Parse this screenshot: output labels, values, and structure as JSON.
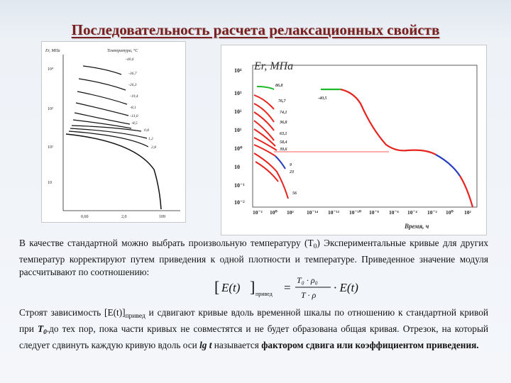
{
  "title": "Последовательность расчета релаксационных свойств",
  "left_chart": {
    "ylabel": "Er, МПа",
    "legend_title": "Температура, °С",
    "temps": [
      "-40,6",
      "-36,7",
      "-26,3",
      "-19,4",
      "-8,1",
      "-13,0",
      "-8,5",
      "0,8",
      "1,2",
      "2,8"
    ],
    "yticks": [
      "10⁴",
      "10³",
      "10²",
      "10"
    ],
    "xticks": [
      "0,60",
      "2,0",
      "109"
    ]
  },
  "right_chart": {
    "ylabel": "Er, МПа",
    "xlabel": "Время, ч",
    "yticks": [
      "10⁴",
      "10³",
      "10²",
      "10¹",
      "10⁰",
      "10",
      "10⁻¹",
      "10⁻²"
    ],
    "xticks": [
      "10⁻²",
      "10⁰",
      "10²",
      "10⁻¹⁴",
      "10⁻¹²",
      "10⁻¹⁰",
      "10⁻⁸",
      "10⁻⁶",
      "10⁻⁴",
      "10⁻²",
      "10⁰",
      "10²"
    ],
    "curve_labels": [
      "86,8",
      "76,7",
      "74,1",
      "36,8",
      "63,1",
      "58,4",
      "39,6",
      "9",
      "23",
      "56"
    ],
    "master_label": "-40,5",
    "colors": {
      "red": "#e8231e",
      "green": "#1fb82b",
      "blue": "#2a3fbf",
      "guide": "#ff4f4f"
    }
  },
  "paragraph1": {
    "text": "В качестве стандартной можно выбрать произвольную температуру (T",
    "sub0": "0",
    "text2": ") Экспериментальные кривые для других температур корректируют путем приведения к одной плотности и температуре. Приведенное значение модуля рассчитывают по соотношению:"
  },
  "formula": {
    "lhs": "E(t)",
    "lhs_sub": "привед",
    "eq": "=",
    "num": "T₀ · ρ₀",
    "den": "T · ρ",
    "rhs": "· E(t)"
  },
  "paragraph2": {
    "a": "Строят зависимость [E(t)]",
    "a_sub": "привед",
    "b": " и сдвигают кривые вдоль временной шкалы по отношению к стандартной кривой при ",
    "t0": "T",
    "t0_sub": "0",
    "c": ".до тех пор, пока части кривых не совместятся и не будет образована общая кривая. Отрезок, на который следует сдвинуть каждую кривую вдоль оси ",
    "lgt": "lg t",
    "d": " называется ",
    "bold_end": "фактором сдвига или коэффициентом приведения."
  }
}
